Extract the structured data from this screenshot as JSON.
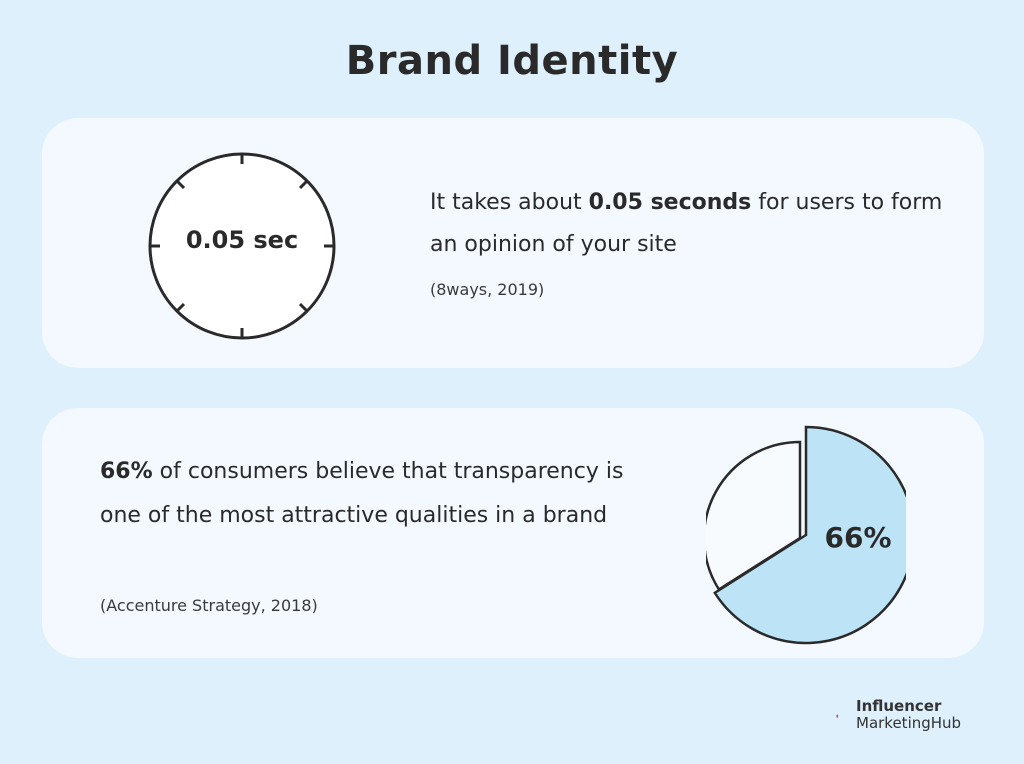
{
  "title": "Brand Identity",
  "card1": {
    "clock_label": "0.05 sec",
    "text_before": "It takes about ",
    "text_bold": "0.05 seconds",
    "text_after": " for users to form an opinion of your site",
    "source": "(8ways, 2019)"
  },
  "card2": {
    "text_bold": "66%",
    "text_after": " of consumers believe that transparency is one of the most attractive qualities in a brand",
    "source": "(Accenture Strategy, 2018)",
    "pie_label": "66%"
  },
  "logo": {
    "line1": "Influencer",
    "line2": "MarketingHub"
  },
  "colors": {
    "background": "#ddf0fc",
    "card": "#f3f9fe",
    "pie_highlight": "#bde3f7",
    "outline": "#2a2a2a",
    "logo_pink": "#e8336b"
  },
  "chart_data": {
    "type": "pie",
    "values": [
      66,
      34
    ],
    "labels": [
      "66%",
      ""
    ],
    "highlight_index": 0
  }
}
